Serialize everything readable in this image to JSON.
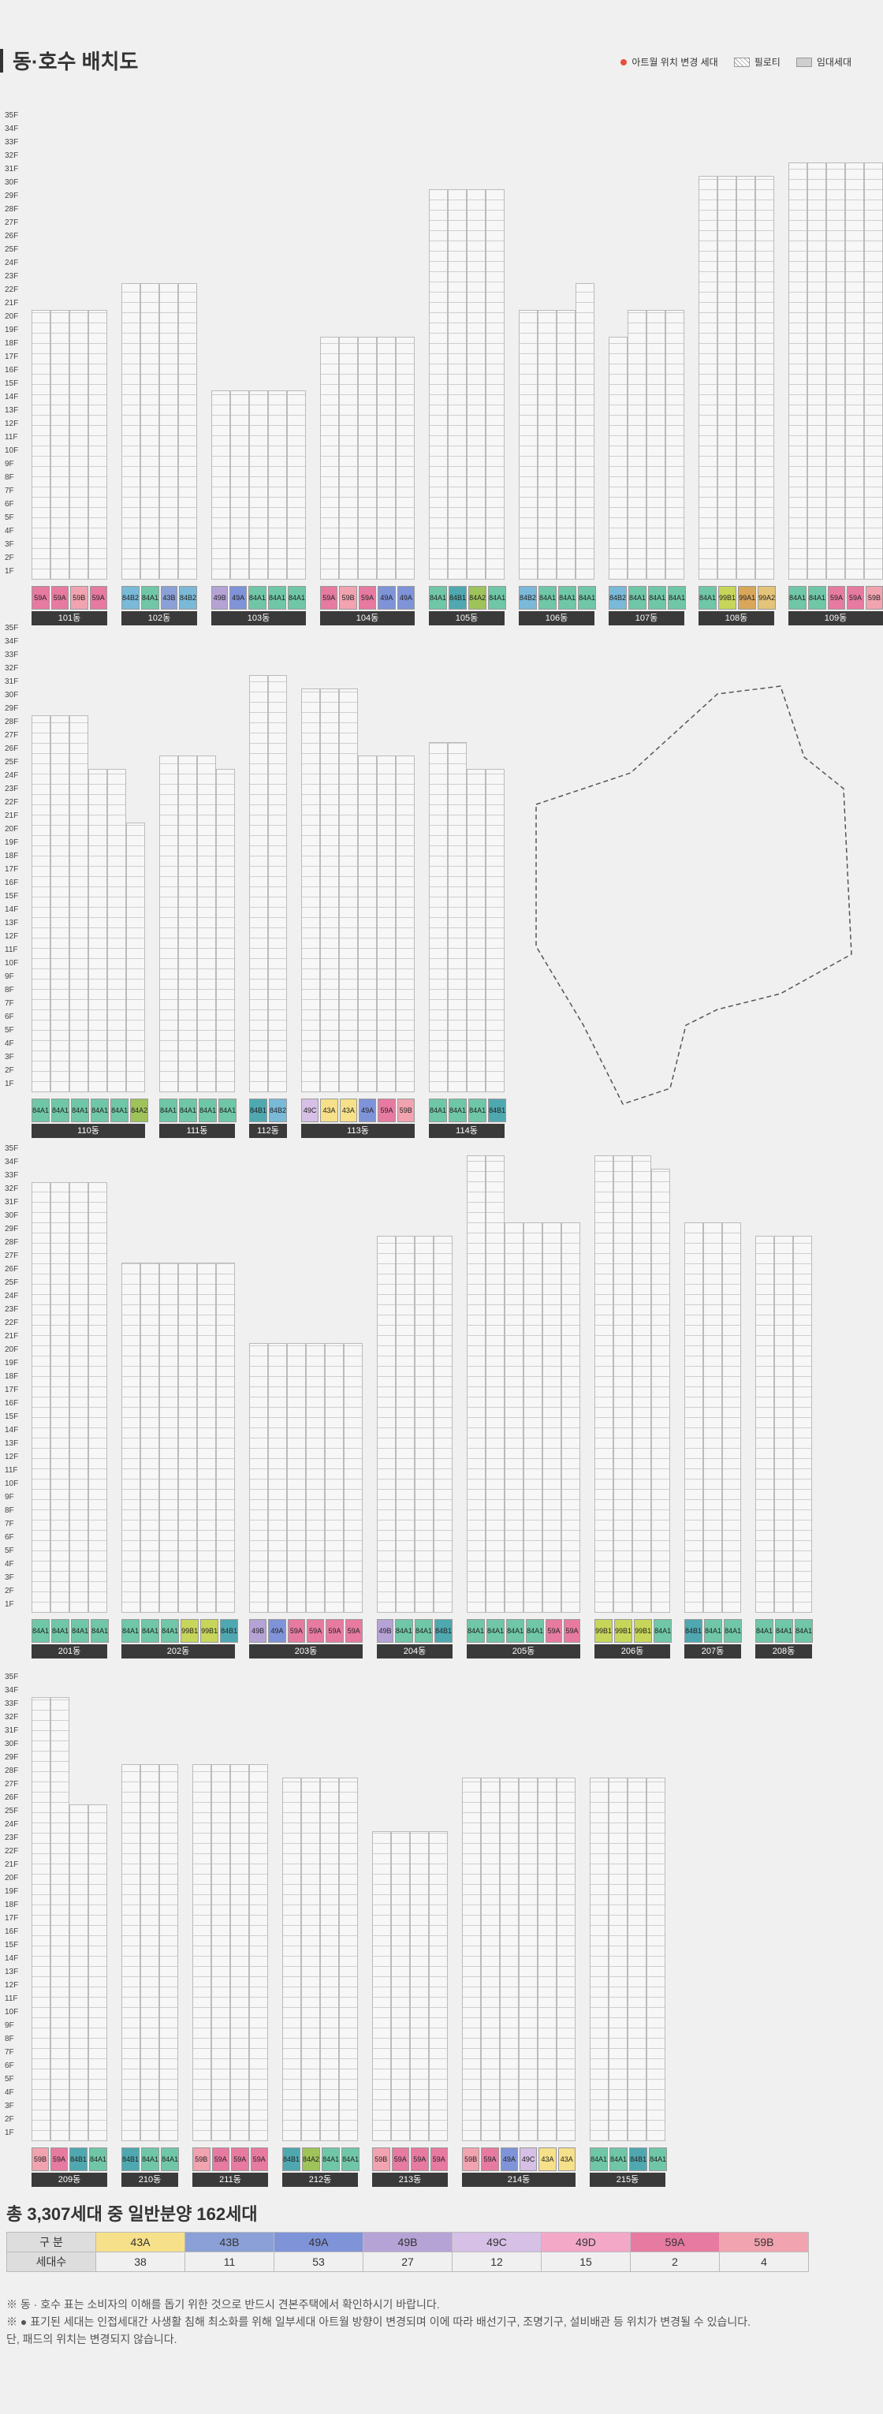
{
  "header": {
    "title": "동·호수 배치도"
  },
  "legend": [
    {
      "label": "아트월 위치 변경 세대",
      "icon": "red-dot-icon"
    },
    {
      "label": "필로티",
      "icon": "hatch-icon"
    },
    {
      "label": "임대세대",
      "icon": "rental-box-icon"
    }
  ],
  "sections": [
    {
      "buildings": [
        {
          "name": "101동",
          "types": [
            "59A",
            "59A",
            "59B",
            "59A"
          ],
          "cols": [
            20,
            20,
            20,
            20
          ]
        },
        {
          "name": "102동",
          "types": [
            "84B2",
            "84A1",
            "43B",
            "84B2"
          ],
          "cols": [
            22,
            22,
            22,
            22
          ]
        },
        {
          "name": "103동",
          "types": [
            "49B",
            "49A",
            "84A1",
            "84A1",
            "84A1"
          ],
          "cols": [
            14,
            14,
            14,
            14,
            14
          ]
        },
        {
          "name": "104동",
          "types": [
            "59A",
            "59B",
            "59A",
            "49A",
            "49A"
          ],
          "cols": [
            18,
            18,
            18,
            18,
            18
          ]
        },
        {
          "name": "105동",
          "types": [
            "84A1",
            "84B1",
            "84A2",
            "84A1"
          ],
          "cols": [
            29,
            29,
            29,
            29
          ]
        },
        {
          "name": "106동",
          "types": [
            "84B2",
            "84A1",
            "84A1",
            "84A1"
          ],
          "cols": [
            20,
            20,
            20,
            22
          ]
        },
        {
          "name": "107동",
          "types": [
            "84B2",
            "84A1",
            "84A1",
            "84A1"
          ],
          "cols": [
            18,
            20,
            20,
            20
          ]
        },
        {
          "name": "108동",
          "types": [
            "84A1",
            "99B1",
            "99A1",
            "99A2"
          ],
          "cols": [
            30,
            30,
            30,
            30
          ]
        },
        {
          "name": "109동",
          "types": [
            "84A1",
            "84A1",
            "59A",
            "59A",
            "59B"
          ],
          "cols": [
            31,
            31,
            31,
            31,
            31
          ]
        }
      ]
    },
    {
      "buildings": [
        {
          "name": "110동",
          "types": [
            "84A1",
            "84A1",
            "84A1",
            "84A1",
            "84A1",
            "84A2"
          ],
          "cols": [
            28,
            28,
            28,
            24,
            24,
            20
          ]
        },
        {
          "name": "111동",
          "types": [
            "84A1",
            "84A1",
            "84A1",
            "84A1"
          ],
          "cols": [
            25,
            25,
            25,
            24
          ]
        },
        {
          "name": "112동",
          "types": [
            "84B1",
            "84B2"
          ],
          "cols": [
            31,
            31
          ]
        },
        {
          "name": "113동",
          "types": [
            "49C",
            "43A",
            "43A",
            "49A",
            "59A",
            "59B"
          ],
          "cols": [
            30,
            30,
            30,
            25,
            25,
            25
          ]
        },
        {
          "name": "114동",
          "types": [
            "84A1",
            "84A1",
            "84A1",
            "84B1"
          ],
          "cols": [
            26,
            26,
            24,
            24
          ]
        }
      ]
    },
    {
      "buildings": [
        {
          "name": "201동",
          "types": [
            "84A1",
            "84A1",
            "84A1",
            "84A1"
          ],
          "cols": [
            32,
            32,
            32,
            32
          ]
        },
        {
          "name": "202동",
          "types": [
            "84A1",
            "84A1",
            "84A1",
            "99B1",
            "99B1",
            "84B1"
          ],
          "cols": [
            26,
            26,
            26,
            26,
            26,
            26
          ]
        },
        {
          "name": "203동",
          "types": [
            "49B",
            "49A",
            "59A",
            "59A",
            "59A",
            "59A"
          ],
          "cols": [
            20,
            20,
            20,
            20,
            20,
            20
          ]
        },
        {
          "name": "204동",
          "types": [
            "49B",
            "84A1",
            "84A1",
            "84B1"
          ],
          "cols": [
            28,
            28,
            28,
            28
          ]
        },
        {
          "name": "205동",
          "types": [
            "84A1",
            "84A1",
            "84A1",
            "84A1",
            "59A",
            "59A"
          ],
          "cols": [
            34,
            34,
            29,
            29,
            29,
            29
          ]
        },
        {
          "name": "206동",
          "types": [
            "99B1",
            "99B1",
            "99B1",
            "84A1"
          ],
          "cols": [
            34,
            34,
            34,
            33
          ]
        },
        {
          "name": "207동",
          "types": [
            "84B1",
            "84A1",
            "84A1"
          ],
          "cols": [
            29,
            29,
            29
          ]
        },
        {
          "name": "208동",
          "types": [
            "84A1",
            "84A1",
            "84A1"
          ],
          "cols": [
            28,
            28,
            28
          ]
        }
      ]
    },
    {
      "buildings": [
        {
          "name": "209동",
          "types": [
            "59B",
            "59A",
            "84B1",
            "84A1"
          ],
          "cols": [
            33,
            33,
            25,
            25
          ]
        },
        {
          "name": "210동",
          "types": [
            "84B1",
            "84A1",
            "84A1"
          ],
          "cols": [
            28,
            28,
            28
          ]
        },
        {
          "name": "211동",
          "types": [
            "59B",
            "59A",
            "59A",
            "59A"
          ],
          "cols": [
            28,
            28,
            28,
            28
          ]
        },
        {
          "name": "212동",
          "types": [
            "84B1",
            "84A2",
            "84A1",
            "84A1"
          ],
          "cols": [
            27,
            27,
            27,
            27
          ]
        },
        {
          "name": "213동",
          "types": [
            "59B",
            "59A",
            "59A",
            "59A"
          ],
          "cols": [
            23,
            23,
            23,
            23
          ]
        },
        {
          "name": "214동",
          "types": [
            "59B",
            "59A",
            "49A",
            "49C",
            "43A",
            "43A"
          ],
          "cols": [
            27,
            27,
            27,
            27,
            27,
            27
          ]
        },
        {
          "name": "215동",
          "types": [
            "84A1",
            "84A1",
            "84B1",
            "84A1"
          ],
          "cols": [
            27,
            27,
            27,
            27
          ]
        }
      ]
    }
  ],
  "type_colors": {
    "43A": "#f6e08a",
    "43B": "#8aa0d6",
    "49A": "#7f93d8",
    "49B": "#b5a3d6",
    "49C": "#d6c0e6",
    "49D": "#f3a8c8",
    "59A": "#e77aa0",
    "59B": "#f1a3b0",
    "84A1": "#6fc7a7",
    "84A2": "#9fc35a",
    "84B1": "#4fa8b0",
    "84B2": "#7ab9d8",
    "99A1": "#d9a65a",
    "99A2": "#e4c47a",
    "99B1": "#c7d65a"
  },
  "summary": {
    "heading": "총 3,307세대 중 일반분양 162세대",
    "header_label": "구  분",
    "count_label": "세대수",
    "types": [
      "43A",
      "43B",
      "49A",
      "49B",
      "49C",
      "49D",
      "59A",
      "59B"
    ],
    "counts": [
      "38",
      "11",
      "53",
      "27",
      "12",
      "15",
      "2",
      "4"
    ],
    "notes": [
      "※ 동 · 호수 표는 소비자의 이해를 돕기 위한 것으로 반드시 견본주택에서 확인하시기 바랍니다.",
      "※ ● 표기된 세대는 인접세대간 사생활 침해 최소화를 위해 일부세대 아트월 방향이 변경되며 이에 따라 배선기구, 조명기구, 설비배관 등 위치가 변경될 수 있습니다.",
      "    단, 패드의 위치는 변경되지 않습니다."
    ]
  }
}
